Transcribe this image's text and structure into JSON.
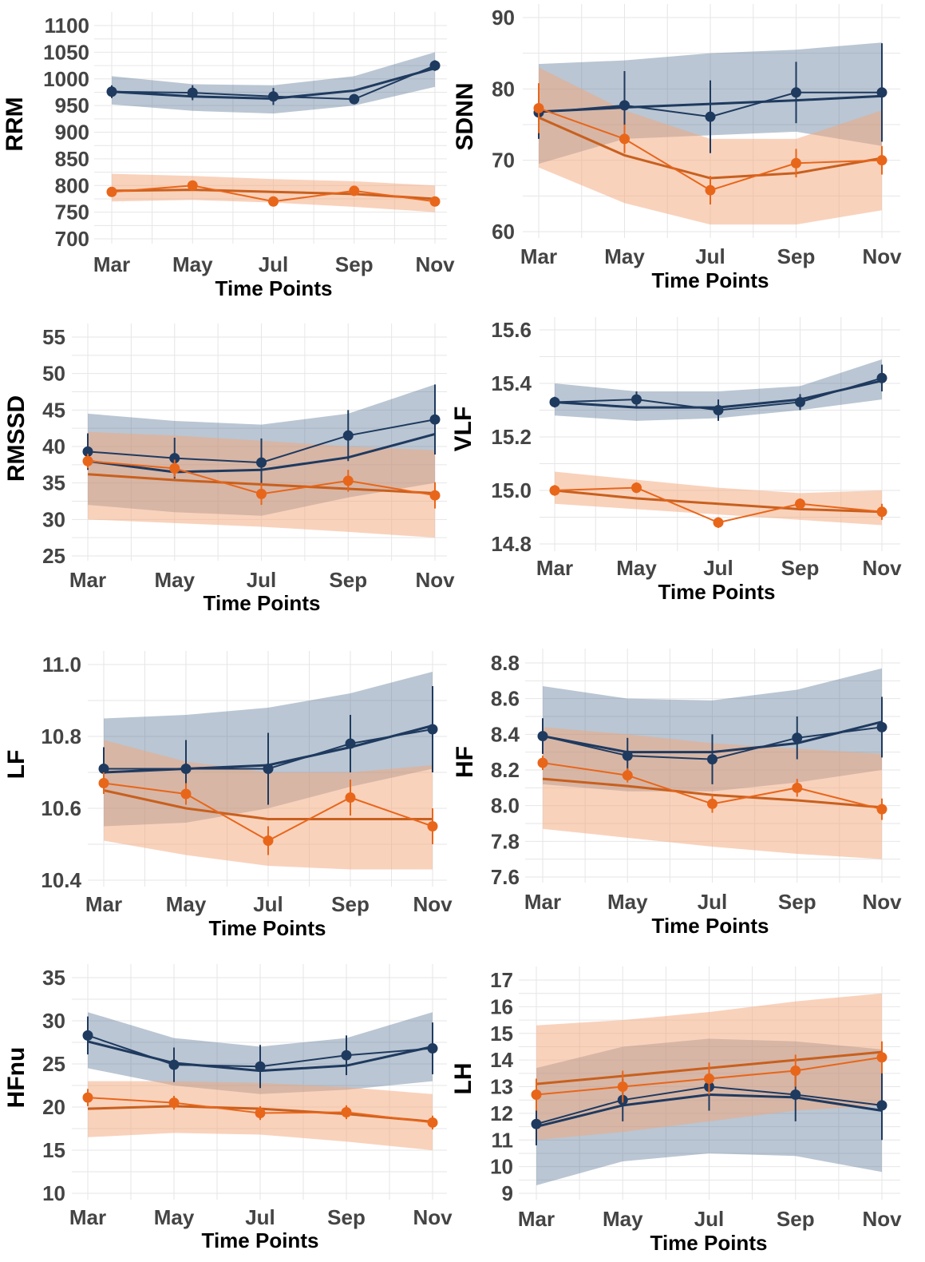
{
  "colors": {
    "navy": "#1f3a5f",
    "navy_band": "#5a7896",
    "orange": "#e8661a",
    "orange_band": "#f4a57a",
    "orange_fit": "#c8601e",
    "grid": "#e6e6e6"
  },
  "chart_data": [
    {
      "type": "line",
      "ylabel": "RRM",
      "xlabel": "Time Points",
      "categories": [
        "Mar",
        "May",
        "Jul",
        "Sep",
        "Nov"
      ],
      "ylim": [
        700,
        1100
      ],
      "yticks": [
        700,
        750,
        800,
        850,
        900,
        950,
        1000,
        1050,
        1100
      ],
      "series": [
        {
          "color": "navy",
          "values": [
            976,
            974,
            967,
            962,
            1025
          ],
          "errors": [
            12,
            14,
            16,
            6,
            10
          ],
          "fit": [
            976,
            967,
            963,
            978,
            1020
          ],
          "band_lower": [
            952,
            940,
            935,
            950,
            985
          ],
          "band_upper": [
            1005,
            990,
            988,
            1005,
            1050
          ]
        },
        {
          "color": "orange",
          "values": [
            788,
            800,
            770,
            790,
            770
          ],
          "errors": [
            8,
            6,
            5,
            8,
            6
          ],
          "fit": [
            790,
            792,
            788,
            784,
            775
          ],
          "band_lower": [
            770,
            773,
            768,
            760,
            750
          ],
          "band_upper": [
            822,
            818,
            812,
            808,
            800
          ]
        }
      ]
    },
    {
      "type": "line",
      "ylabel": "SDNN",
      "xlabel": "Time Points",
      "categories": [
        "Mar",
        "May",
        "Jul",
        "Sep",
        "Nov"
      ],
      "ylim": [
        60,
        90
      ],
      "yticks": [
        60,
        70,
        80,
        90
      ],
      "series": [
        {
          "color": "navy",
          "values": [
            76.7,
            77.7,
            76.1,
            79.5,
            79.5
          ],
          "errors": [
            3.7,
            4.8,
            5.1,
            4.3,
            6.9
          ],
          "fit": [
            76.8,
            77.4,
            77.9,
            78.4,
            79.0
          ],
          "band_lower": [
            69.5,
            73.0,
            73.5,
            74.0,
            72.0
          ],
          "band_upper": [
            83.5,
            84.0,
            85.0,
            85.5,
            86.5
          ]
        },
        {
          "color": "orange",
          "values": [
            77.3,
            73.0,
            65.8,
            69.6,
            70.0
          ],
          "errors": [
            3.5,
            2.0,
            2.0,
            2.0,
            2.0
          ],
          "fit": [
            76.0,
            70.7,
            67.5,
            68.2,
            70.3
          ],
          "band_lower": [
            69.0,
            64.0,
            61.0,
            61.0,
            63.0
          ],
          "band_upper": [
            83.0,
            77.0,
            73.0,
            73.0,
            77.0
          ]
        }
      ]
    },
    {
      "type": "line",
      "ylabel": "RMSSD",
      "xlabel": "Time Points",
      "categories": [
        "Mar",
        "May",
        "Jul",
        "Sep",
        "Nov"
      ],
      "ylim": [
        25,
        55
      ],
      "yticks": [
        25,
        30,
        35,
        40,
        45,
        50,
        55
      ],
      "series": [
        {
          "color": "navy",
          "values": [
            39.3,
            38.4,
            37.8,
            41.5,
            43.7
          ],
          "errors": [
            2.5,
            2.8,
            3.3,
            3.5,
            4.8
          ],
          "fit": [
            38.0,
            36.5,
            36.8,
            38.5,
            41.7
          ],
          "band_lower": [
            32.0,
            31.0,
            30.5,
            33.0,
            35.0
          ],
          "band_upper": [
            44.5,
            43.5,
            43.0,
            44.5,
            48.5
          ]
        },
        {
          "color": "orange",
          "values": [
            38.0,
            37.0,
            33.5,
            35.3,
            33.3
          ],
          "errors": [
            1.0,
            1.2,
            1.5,
            1.5,
            1.8
          ],
          "fit": [
            36.2,
            35.4,
            34.8,
            34.2,
            33.6
          ],
          "band_lower": [
            30.0,
            29.5,
            29.0,
            28.3,
            27.5
          ],
          "band_upper": [
            42.0,
            41.5,
            40.8,
            40.0,
            39.5
          ]
        }
      ]
    },
    {
      "type": "line",
      "ylabel": "VLF",
      "xlabel": "Time Points",
      "categories": [
        "Mar",
        "May",
        "Jul",
        "Sep",
        "Nov"
      ],
      "ylim": [
        14.8,
        15.6
      ],
      "yticks": [
        14.8,
        15.0,
        15.2,
        15.4,
        15.6
      ],
      "series": [
        {
          "color": "navy",
          "values": [
            15.33,
            15.34,
            15.3,
            15.33,
            15.42
          ],
          "errors": [
            0.02,
            0.03,
            0.04,
            0.03,
            0.05
          ],
          "fit": [
            15.33,
            15.31,
            15.31,
            15.34,
            15.41
          ],
          "band_lower": [
            15.28,
            15.26,
            15.27,
            15.3,
            15.34
          ],
          "band_upper": [
            15.4,
            15.37,
            15.37,
            15.39,
            15.49
          ]
        },
        {
          "color": "orange",
          "values": [
            15.0,
            15.01,
            14.88,
            14.95,
            14.92
          ],
          "errors": [
            0.02,
            0.02,
            0.02,
            0.02,
            0.03
          ],
          "fit": [
            15.0,
            14.97,
            14.95,
            14.93,
            14.92
          ],
          "band_lower": [
            14.95,
            14.93,
            14.91,
            14.89,
            14.87
          ],
          "band_upper": [
            15.07,
            15.04,
            15.01,
            14.99,
            15.0
          ]
        }
      ]
    },
    {
      "type": "line",
      "ylabel": "LF",
      "xlabel": "Time Points",
      "categories": [
        "Mar",
        "May",
        "Jul",
        "Sep",
        "Nov"
      ],
      "ylim": [
        10.4,
        11.0
      ],
      "yticks": [
        10.4,
        10.6,
        10.8,
        11.0
      ],
      "series": [
        {
          "color": "navy",
          "values": [
            10.71,
            10.71,
            10.71,
            10.78,
            10.82
          ],
          "errors": [
            0.06,
            0.08,
            0.1,
            0.08,
            0.12
          ],
          "fit": [
            10.7,
            10.71,
            10.72,
            10.77,
            10.83
          ],
          "band_lower": [
            10.55,
            10.56,
            10.6,
            10.66,
            10.71
          ],
          "band_upper": [
            10.85,
            10.86,
            10.88,
            10.92,
            10.98
          ]
        },
        {
          "color": "orange",
          "values": [
            10.67,
            10.64,
            10.51,
            10.63,
            10.55
          ],
          "errors": [
            0.03,
            0.03,
            0.04,
            0.05,
            0.05
          ],
          "fit": [
            10.65,
            10.6,
            10.57,
            10.57,
            10.57
          ],
          "band_lower": [
            10.51,
            10.47,
            10.44,
            10.43,
            10.43
          ],
          "band_upper": [
            10.79,
            10.73,
            10.7,
            10.7,
            10.72
          ]
        }
      ]
    },
    {
      "type": "line",
      "ylabel": "HF",
      "xlabel": "Time Points",
      "categories": [
        "Mar",
        "May",
        "Jul",
        "Sep",
        "Nov"
      ],
      "ylim": [
        7.6,
        8.8
      ],
      "yticks": [
        7.6,
        7.8,
        8.0,
        8.2,
        8.4,
        8.6,
        8.8
      ],
      "series": [
        {
          "color": "navy",
          "values": [
            8.39,
            8.28,
            8.26,
            8.38,
            8.44
          ],
          "errors": [
            0.1,
            0.1,
            0.14,
            0.12,
            0.17
          ],
          "fit": [
            8.39,
            8.3,
            8.3,
            8.35,
            8.47
          ],
          "band_lower": [
            8.12,
            8.08,
            8.08,
            8.13,
            8.2
          ],
          "band_upper": [
            8.67,
            8.6,
            8.59,
            8.65,
            8.77
          ]
        },
        {
          "color": "orange",
          "values": [
            8.24,
            8.17,
            8.01,
            8.1,
            7.98
          ],
          "errors": [
            0.04,
            0.04,
            0.05,
            0.05,
            0.06
          ],
          "fit": [
            8.15,
            8.11,
            8.06,
            8.03,
            7.99
          ],
          "band_lower": [
            7.87,
            7.82,
            7.77,
            7.73,
            7.7
          ],
          "band_upper": [
            8.44,
            8.4,
            8.35,
            8.32,
            8.29
          ]
        }
      ]
    },
    {
      "type": "line",
      "ylabel": "HFnu",
      "xlabel": "Time Points",
      "categories": [
        "Mar",
        "May",
        "Jul",
        "Sep",
        "Nov"
      ],
      "ylim": [
        10,
        35
      ],
      "yticks": [
        10,
        15,
        20,
        25,
        30,
        35
      ],
      "series": [
        {
          "color": "navy",
          "values": [
            28.3,
            24.9,
            24.7,
            26.0,
            26.8
          ],
          "errors": [
            2.2,
            2.0,
            2.5,
            2.3,
            3.0
          ],
          "fit": [
            27.6,
            25.1,
            24.2,
            24.8,
            27.0
          ],
          "band_lower": [
            24.5,
            22.5,
            21.5,
            22.0,
            23.0
          ],
          "band_upper": [
            31.0,
            28.0,
            27.0,
            28.0,
            31.0
          ]
        },
        {
          "color": "orange",
          "values": [
            21.1,
            20.5,
            19.3,
            19.4,
            18.2
          ],
          "errors": [
            1.0,
            0.8,
            0.8,
            0.8,
            0.8
          ],
          "fit": [
            19.8,
            20.1,
            19.8,
            19.2,
            18.3
          ],
          "band_lower": [
            16.5,
            17.0,
            16.8,
            16.0,
            15.0
          ],
          "band_upper": [
            23.0,
            23.0,
            22.8,
            22.3,
            21.5
          ]
        }
      ]
    },
    {
      "type": "line",
      "ylabel": "LH",
      "xlabel": "Time Points",
      "categories": [
        "Mar",
        "May",
        "Jul",
        "Sep",
        "Nov"
      ],
      "ylim": [
        9,
        17
      ],
      "yticks": [
        9,
        10,
        11,
        12,
        13,
        14,
        15,
        16,
        17
      ],
      "series": [
        {
          "color": "navy",
          "values": [
            11.6,
            12.5,
            13.0,
            12.7,
            12.3
          ],
          "errors": [
            0.8,
            0.8,
            0.9,
            1.0,
            1.3
          ],
          "fit": [
            11.5,
            12.3,
            12.7,
            12.6,
            12.1
          ],
          "band_lower": [
            9.3,
            10.2,
            10.5,
            10.4,
            9.8
          ],
          "band_upper": [
            13.7,
            14.5,
            14.8,
            14.7,
            14.4
          ]
        },
        {
          "color": "orange",
          "values": [
            12.7,
            13.0,
            13.3,
            13.6,
            14.1
          ],
          "errors": [
            0.6,
            0.6,
            0.6,
            0.6,
            0.6
          ],
          "fit": [
            13.1,
            13.4,
            13.7,
            14.0,
            14.3
          ],
          "band_lower": [
            11.0,
            11.3,
            11.7,
            12.1,
            12.3
          ],
          "band_upper": [
            15.3,
            15.5,
            15.8,
            16.2,
            16.5
          ]
        }
      ]
    }
  ]
}
